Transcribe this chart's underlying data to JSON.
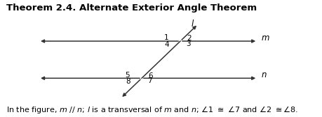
{
  "title": "Theorem 2.4. Alternate Exterior Angle Theorem",
  "title_fontsize": 9.5,
  "title_fontweight": "bold",
  "figsize": [
    4.59,
    1.68
  ],
  "dpi": 100,
  "background_color": "#ffffff",
  "line_color": "#333333",
  "text_color": "#000000",
  "footer_text": "In the figure, $m$ // $n$; $l$ is a transversal of $m$ and $n$; $\\angle$1 $\\cong$ $\\angle$7 and $\\angle$2 $\\cong$$\\angle$8.",
  "footer_fontsize": 8.0
}
